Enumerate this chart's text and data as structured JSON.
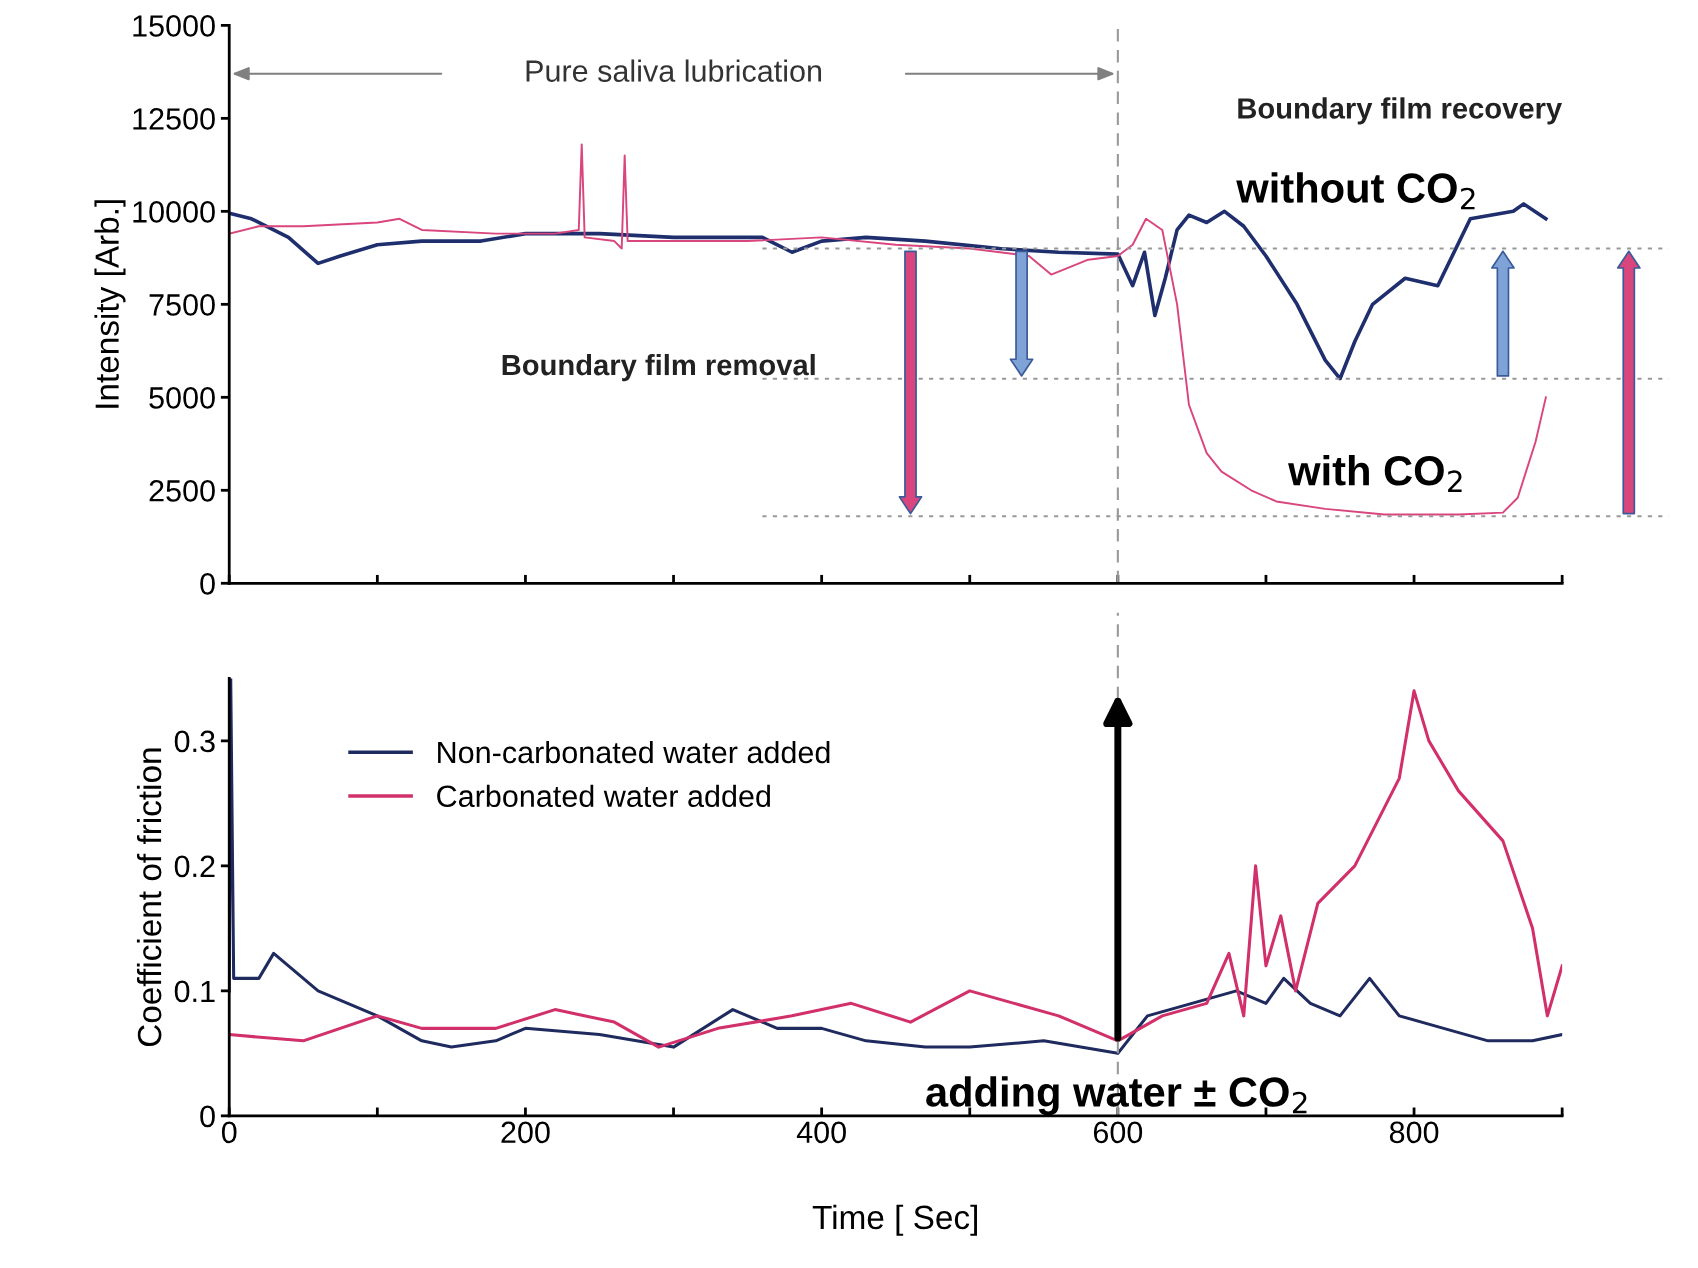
{
  "chart_data": [
    {
      "type": "line",
      "ylabel": "Intensity [Arb.]",
      "xlim": [
        0,
        900
      ],
      "ylim": [
        0,
        15000
      ],
      "tick_labels": "y",
      "legend": false,
      "grid": false,
      "xticks": [
        {
          "value": 0,
          "label": null
        },
        {
          "value": 100,
          "label": null
        },
        {
          "value": 200,
          "label": null
        },
        {
          "value": 300,
          "label": null
        },
        {
          "value": 400,
          "label": null
        },
        {
          "value": 500,
          "label": null
        },
        {
          "value": 600,
          "label": null
        },
        {
          "value": 700,
          "label": null
        },
        {
          "value": 800,
          "label": null
        },
        {
          "value": 900,
          "label": null
        }
      ],
      "yticks": [
        0,
        2500,
        5000,
        7500,
        10000,
        12500,
        15000
      ],
      "series": [
        {
          "color": "#1f2f6e",
          "x": [
            0,
            15,
            40,
            60,
            75,
            100,
            130,
            170,
            200,
            250,
            300,
            360,
            380,
            400,
            430,
            470,
            520,
            560,
            600,
            610,
            618,
            625,
            632,
            640,
            648,
            660,
            672,
            685,
            700,
            721,
            740,
            750,
            760,
            772,
            794,
            816,
            838,
            867,
            874,
            889
          ],
          "values": [
            9950,
            9800,
            9300,
            8600,
            8800,
            9100,
            9200,
            9200,
            9400,
            9400,
            9300,
            9300,
            8900,
            9200,
            9300,
            9200,
            9000,
            8900,
            8850,
            8000,
            8900,
            7200,
            8200,
            9500,
            9900,
            9700,
            10000,
            9600,
            8800,
            7500,
            6000,
            5500,
            6500,
            7500,
            8200,
            8000,
            9800,
            10000,
            10200,
            9800
          ]
        },
        {
          "color": "#d9467e",
          "x": [
            0,
            20,
            50,
            100,
            115,
            130,
            180,
            220,
            236,
            238,
            240,
            260,
            265,
            267,
            269,
            300,
            350,
            400,
            450,
            500,
            540,
            555,
            580,
            600,
            610,
            619,
            630,
            640,
            648,
            660,
            670,
            690,
            707,
            740,
            780,
            830,
            860,
            870,
            882,
            889
          ],
          "values": [
            9400,
            9600,
            9600,
            9700,
            9800,
            9500,
            9400,
            9400,
            9500,
            11800,
            9300,
            9200,
            9000,
            11500,
            9200,
            9200,
            9200,
            9300,
            9100,
            9000,
            8800,
            8300,
            8700,
            8800,
            9100,
            9800,
            9500,
            7500,
            4800,
            3500,
            3000,
            2500,
            2200,
            2000,
            1850,
            1850,
            1900,
            2300,
            3800,
            5000
          ]
        }
      ],
      "ref_lines": [
        {
          "axis": "x",
          "value": 600,
          "color": "#999999",
          "line_style": "dashed"
        },
        {
          "axis": "y",
          "value": 9000,
          "color": "#999999",
          "line_style": "dotted"
        },
        {
          "axis": "y",
          "value": 5500,
          "color": "#999999",
          "line_style": "dotted"
        },
        {
          "axis": "y",
          "value": 1800,
          "color": "#999999",
          "line_style": "dotted"
        }
      ],
      "annotations": [
        "Pure saliva lubrication",
        "Boundary film recovery",
        "Boundary film removal",
        "without CO$_{2}$",
        "with CO$_{2}$"
      ]
    },
    {
      "type": "line",
      "xlabel": "Time [ Sec]",
      "ylabel": "Coefficient of friction",
      "xlim": [
        0,
        900
      ],
      "ylim": [
        0,
        0.35
      ],
      "legend": "top left",
      "grid": false,
      "xticks": [
        0,
        {
          "value": 100,
          "label": null
        },
        200,
        {
          "value": 300,
          "label": null
        },
        400,
        {
          "value": 500,
          "label": null
        },
        600,
        {
          "value": 700,
          "label": null
        },
        800,
        {
          "value": 900,
          "label": null
        }
      ],
      "yticks": [
        0,
        0.1,
        0.2,
        0.3
      ],
      "series": [
        {
          "name": "Non-carbonated water added",
          "color": "#1f2a5e",
          "x": [
            0,
            1,
            3,
            20,
            30,
            40,
            60,
            80,
            100,
            130,
            150,
            180,
            200,
            250,
            300,
            340,
            370,
            400,
            430,
            470,
            500,
            550,
            600,
            620,
            650,
            680,
            700,
            712,
            730,
            750,
            770,
            790,
            820,
            850,
            880,
            900
          ],
          "values": [
            0.1,
            0.35,
            0.11,
            0.11,
            0.13,
            0.12,
            0.1,
            0.09,
            0.08,
            0.06,
            0.055,
            0.06,
            0.07,
            0.065,
            0.055,
            0.085,
            0.07,
            0.07,
            0.06,
            0.055,
            0.055,
            0.06,
            0.05,
            0.08,
            0.09,
            0.1,
            0.09,
            0.11,
            0.09,
            0.08,
            0.11,
            0.08,
            0.07,
            0.06,
            0.06,
            0.065
          ]
        },
        {
          "name": "Carbonated water added",
          "color": "#d1306a",
          "x": [
            0,
            50,
            100,
            130,
            180,
            220,
            260,
            290,
            330,
            380,
            420,
            460,
            500,
            530,
            560,
            600,
            630,
            660,
            675,
            685,
            693,
            700,
            710,
            720,
            735,
            760,
            790,
            800,
            810,
            830,
            860,
            880,
            890,
            900
          ],
          "values": [
            0.065,
            0.06,
            0.08,
            0.07,
            0.07,
            0.085,
            0.075,
            0.055,
            0.07,
            0.08,
            0.09,
            0.075,
            0.1,
            0.09,
            0.08,
            0.06,
            0.08,
            0.09,
            0.13,
            0.08,
            0.2,
            0.12,
            0.16,
            0.1,
            0.17,
            0.2,
            0.27,
            0.34,
            0.3,
            0.26,
            0.22,
            0.15,
            0.08,
            0.12
          ]
        }
      ],
      "ref_lines": [
        {
          "axis": "x",
          "value": 600,
          "color": "#999999",
          "line_style": "dashed"
        }
      ],
      "annotations": [
        {
          "text": "adding water ± CO$_{2}$",
          "x": 600,
          "y": 0.06
        }
      ]
    }
  ]
}
